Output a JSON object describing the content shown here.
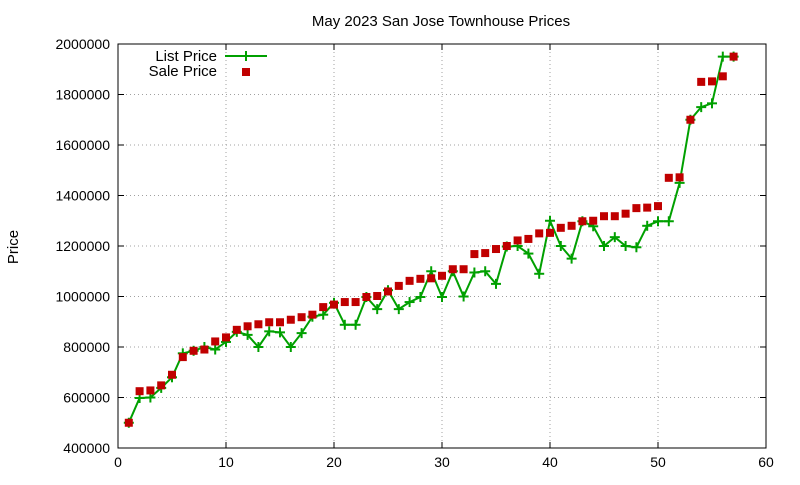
{
  "colors": {
    "list_price": "#00a000",
    "sale_price": "#c00000",
    "grid": "#a0a0a0",
    "axis": "#000000"
  },
  "chart_data": {
    "type": "scatter",
    "title": "May 2023 San Jose Townhouse Prices",
    "xlabel": "",
    "ylabel": "Price",
    "xlim": [
      0,
      60
    ],
    "ylim": [
      400000,
      2000000
    ],
    "x_ticks": [
      0,
      10,
      20,
      30,
      40,
      50,
      60
    ],
    "y_ticks": [
      400000,
      600000,
      800000,
      1000000,
      1200000,
      1400000,
      1600000,
      1800000,
      2000000
    ],
    "x_tick_labels": [
      "0",
      "10",
      "20",
      "30",
      "40",
      "50",
      "60"
    ],
    "y_tick_labels": [
      "400000",
      "600000",
      "800000",
      "1000000",
      "1200000",
      "1400000",
      "1600000",
      "1800000",
      "2000000"
    ],
    "grid": true,
    "legend_position": "top-left",
    "series": [
      {
        "name": "List Price",
        "style": "linespoints",
        "x": [
          1,
          2,
          3,
          4,
          5,
          6,
          7,
          8,
          9,
          10,
          11,
          12,
          13,
          14,
          15,
          16,
          17,
          18,
          19,
          20,
          21,
          22,
          23,
          24,
          25,
          26,
          27,
          28,
          29,
          30,
          31,
          32,
          33,
          34,
          35,
          36,
          37,
          38,
          39,
          40,
          41,
          42,
          43,
          44,
          45,
          46,
          47,
          48,
          49,
          50,
          51,
          52,
          53,
          54,
          55,
          56,
          57
        ],
        "y": [
          500000,
          598000,
          600000,
          638000,
          680000,
          775000,
          785000,
          800000,
          790000,
          820000,
          860000,
          848000,
          800000,
          862000,
          858000,
          800000,
          855000,
          920000,
          928000,
          975000,
          888000,
          888000,
          998000,
          950000,
          1025000,
          950000,
          978000,
          998000,
          1100000,
          998000,
          1100000,
          1000000,
          1095000,
          1100000,
          1050000,
          1198000,
          1200000,
          1170000,
          1090000,
          1300000,
          1200000,
          1150000,
          1298000,
          1278000,
          1200000,
          1235000,
          1200000,
          1195000,
          1280000,
          1298000,
          1298000,
          1450000,
          1700000,
          1750000,
          1765000,
          1950000,
          1950000
        ]
      },
      {
        "name": "Sale Price",
        "style": "points",
        "x": [
          1,
          2,
          3,
          4,
          5,
          6,
          7,
          8,
          9,
          10,
          11,
          12,
          13,
          14,
          15,
          16,
          17,
          18,
          19,
          20,
          21,
          22,
          23,
          24,
          25,
          26,
          27,
          28,
          29,
          30,
          31,
          32,
          33,
          34,
          35,
          36,
          37,
          38,
          39,
          40,
          41,
          42,
          43,
          44,
          45,
          46,
          47,
          48,
          49,
          50,
          51,
          52,
          53,
          54,
          55,
          56,
          57
        ],
        "y": [
          500000,
          625000,
          628000,
          648000,
          690000,
          760000,
          785000,
          790000,
          822000,
          838000,
          868000,
          882000,
          890000,
          898000,
          898000,
          908000,
          918000,
          928000,
          958000,
          968000,
          978000,
          978000,
          998000,
          1002000,
          1020000,
          1042000,
          1062000,
          1070000,
          1072000,
          1082000,
          1108000,
          1108000,
          1168000,
          1172000,
          1188000,
          1200000,
          1222000,
          1228000,
          1250000,
          1252000,
          1272000,
          1280000,
          1298000,
          1300000,
          1318000,
          1318000,
          1328000,
          1350000,
          1352000,
          1358000,
          1470000,
          1472000,
          1700000,
          1850000,
          1852000,
          1872000,
          1950000
        ]
      }
    ]
  }
}
